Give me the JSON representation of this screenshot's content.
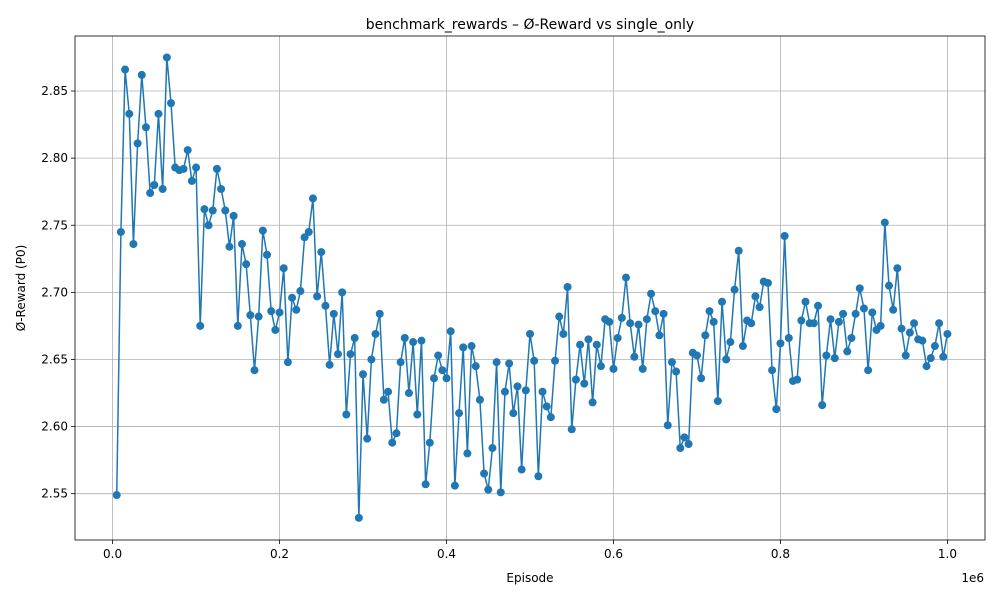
{
  "chart_data": {
    "type": "line",
    "title": "benchmark_rewards – Ø-Reward vs single_only",
    "xlabel": "Episode",
    "ylabel": "Ø-Reward (P0)",
    "x_offset_label": "1e6",
    "xlim": [
      -45000,
      1045000
    ],
    "ylim": [
      2.5155,
      2.891
    ],
    "x_ticks": [
      0,
      200000,
      400000,
      600000,
      800000,
      1000000
    ],
    "x_tick_labels": [
      "0.0",
      "0.2",
      "0.4",
      "0.6",
      "0.8",
      "1.0"
    ],
    "y_ticks": [
      2.55,
      2.6,
      2.65,
      2.7,
      2.75,
      2.8,
      2.85
    ],
    "y_tick_labels": [
      "2.55",
      "2.60",
      "2.65",
      "2.70",
      "2.75",
      "2.80",
      "2.85"
    ],
    "grid": true,
    "series": [
      {
        "color": "#1f77b4",
        "marker": "circle",
        "x_start": 5000,
        "x_step": 5000,
        "values": [
          2.549,
          2.745,
          2.866,
          2.833,
          2.736,
          2.811,
          2.862,
          2.823,
          2.774,
          2.78,
          2.833,
          2.777,
          2.875,
          2.841,
          2.793,
          2.791,
          2.792,
          2.806,
          2.783,
          2.793,
          2.675,
          2.762,
          2.75,
          2.761,
          2.792,
          2.777,
          2.761,
          2.734,
          2.757,
          2.675,
          2.736,
          2.721,
          2.683,
          2.642,
          2.682,
          2.746,
          2.728,
          2.686,
          2.672,
          2.685,
          2.718,
          2.648,
          2.696,
          2.687,
          2.701,
          2.741,
          2.745,
          2.77,
          2.697,
          2.73,
          2.69,
          2.646,
          2.684,
          2.654,
          2.7,
          2.609,
          2.654,
          2.666,
          2.532,
          2.639,
          2.591,
          2.65,
          2.669,
          2.684,
          2.62,
          2.626,
          2.588,
          2.595,
          2.648,
          2.666,
          2.625,
          2.663,
          2.609,
          2.664,
          2.557,
          2.588,
          2.636,
          2.653,
          2.642,
          2.636,
          2.671,
          2.556,
          2.61,
          2.659,
          2.58,
          2.66,
          2.645,
          2.62,
          2.565,
          2.553,
          2.584,
          2.648,
          2.551,
          2.626,
          2.647,
          2.61,
          2.63,
          2.568,
          2.627,
          2.669,
          2.649,
          2.563,
          2.626,
          2.615,
          2.607,
          2.649,
          2.682,
          2.669,
          2.704,
          2.598,
          2.635,
          2.661,
          2.632,
          2.665,
          2.618,
          2.661,
          2.645,
          2.68,
          2.678,
          2.643,
          2.666,
          2.681,
          2.711,
          2.677,
          2.652,
          2.676,
          2.643,
          2.68,
          2.699,
          2.686,
          2.668,
          2.684,
          2.601,
          2.648,
          2.641,
          2.584,
          2.592,
          2.587,
          2.655,
          2.653,
          2.636,
          2.668,
          2.686,
          2.678,
          2.619,
          2.693,
          2.65,
          2.663,
          2.702,
          2.731,
          2.66,
          2.679,
          2.677,
          2.697,
          2.689,
          2.708,
          2.707,
          2.642,
          2.613,
          2.662,
          2.742,
          2.666,
          2.634,
          2.635,
          2.679,
          2.693,
          2.677,
          2.677,
          2.69,
          2.616,
          2.653,
          2.68,
          2.651,
          2.678,
          2.684,
          2.656,
          2.666,
          2.684,
          2.703,
          2.688,
          2.642,
          2.685,
          2.672,
          2.675,
          2.752,
          2.705,
          2.687,
          2.718,
          2.673,
          2.653,
          2.67,
          2.677,
          2.665,
          2.664,
          2.645,
          2.651,
          2.66,
          2.677,
          2.652,
          2.669
        ]
      }
    ]
  }
}
